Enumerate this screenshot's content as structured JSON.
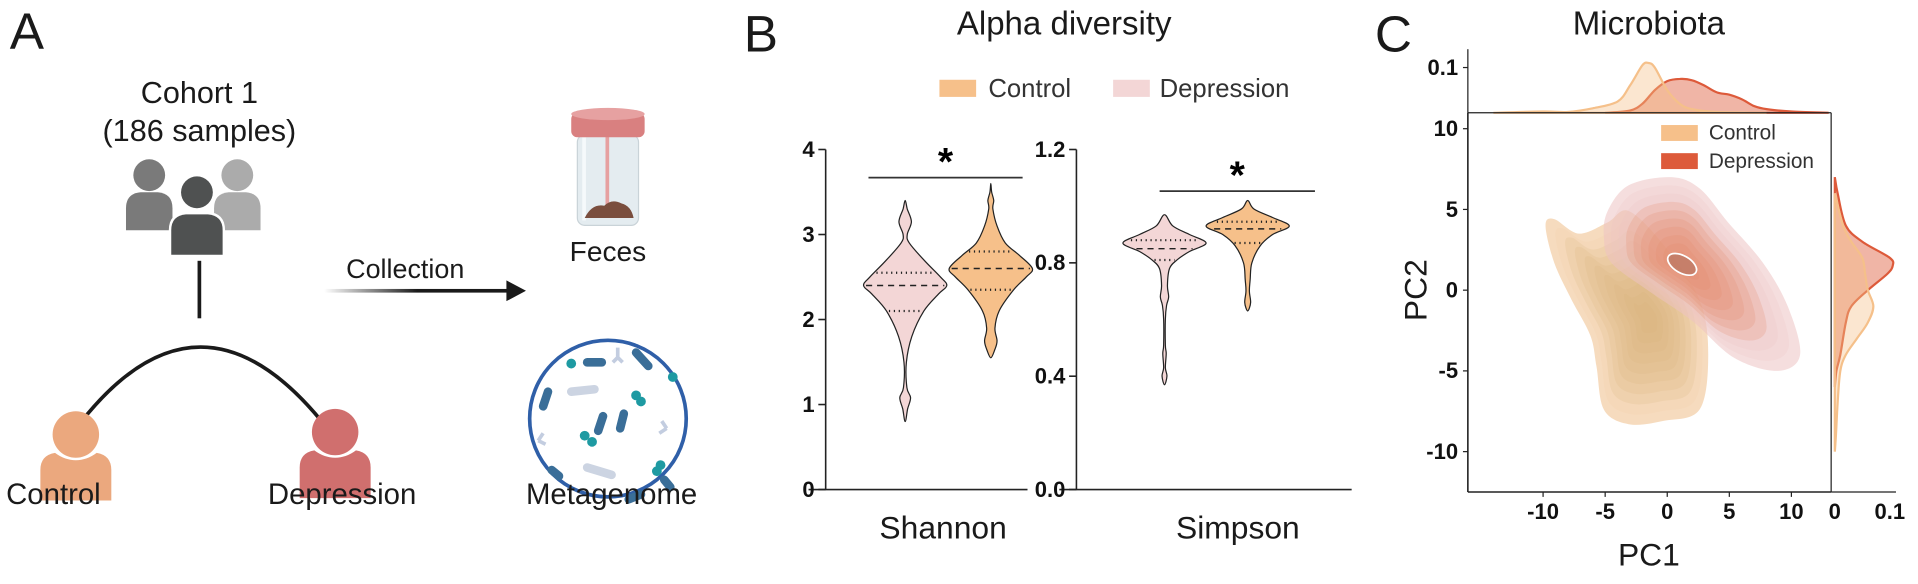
{
  "panel_a": {
    "letter": "A",
    "cohort_title": "Cohort 1",
    "cohort_samples": "(186 samples)",
    "group_control": "Control",
    "group_depression": "Depression",
    "arrow_label": "Collection",
    "sample_label": "Feces",
    "analysis_label": "Metagenome",
    "colors": {
      "control_person": "#eba87e",
      "depression_person": "#d06f6e",
      "circle": "#2f5fa8",
      "bacteria": "#3a6e98",
      "cocci": "#1e9aa2"
    }
  },
  "panel_b": {
    "letter": "B",
    "title": "Alpha diversity",
    "legend": [
      {
        "label": "Control",
        "color": "#f6c08a"
      },
      {
        "label": "Depression",
        "color": "#f3d6d6"
      }
    ]
  },
  "panel_c": {
    "letter": "C",
    "title": "Microbiota"
  },
  "chart_data": [
    {
      "type": "violin",
      "xlabel": "Shannon",
      "ylim": [
        0,
        4
      ],
      "yticks": [
        "0",
        "1",
        "2",
        "3",
        "4"
      ],
      "significance": "*",
      "series": [
        {
          "name": "Depression",
          "color": "#f3d6d6",
          "median": 2.4,
          "q1": 2.1,
          "q3": 2.55,
          "min": 0.8,
          "max": 3.4,
          "density": [
            [
              0.8,
              0
            ],
            [
              0.95,
              0.06
            ],
            [
              1.08,
              0.13
            ],
            [
              1.2,
              0.04
            ],
            [
              1.5,
              0.03
            ],
            [
              1.8,
              0.16
            ],
            [
              2.1,
              0.45
            ],
            [
              2.3,
              0.8
            ],
            [
              2.4,
              1.0
            ],
            [
              2.5,
              0.85
            ],
            [
              2.7,
              0.45
            ],
            [
              2.9,
              0.1
            ],
            [
              3.0,
              0.05
            ],
            [
              3.15,
              0.15
            ],
            [
              3.3,
              0.05
            ],
            [
              3.4,
              0
            ]
          ]
        },
        {
          "name": "Control",
          "color": "#f6c08a",
          "median": 2.6,
          "q1": 2.35,
          "q3": 2.8,
          "min": 1.55,
          "max": 3.6,
          "density": [
            [
              1.55,
              0
            ],
            [
              1.65,
              0.1
            ],
            [
              1.75,
              0.15
            ],
            [
              1.9,
              0.1
            ],
            [
              2.1,
              0.2
            ],
            [
              2.35,
              0.55
            ],
            [
              2.5,
              0.85
            ],
            [
              2.6,
              1.0
            ],
            [
              2.75,
              0.7
            ],
            [
              2.9,
              0.35
            ],
            [
              3.1,
              0.15
            ],
            [
              3.3,
              0.05
            ],
            [
              3.4,
              0.07
            ],
            [
              3.5,
              0.02
            ],
            [
              3.6,
              0
            ]
          ]
        }
      ]
    },
    {
      "type": "violin",
      "xlabel": "Simpson",
      "ylim": [
        0,
        1.2
      ],
      "yticks": [
        "0.0",
        "0.4",
        "0.8",
        "1.2"
      ],
      "significance": "*",
      "series": [
        {
          "name": "Depression",
          "color": "#f3d6d6",
          "median": 0.85,
          "q1": 0.81,
          "q3": 0.88,
          "min": 0.37,
          "max": 0.97,
          "density": [
            [
              0.37,
              0
            ],
            [
              0.4,
              0.06
            ],
            [
              0.43,
              0.02
            ],
            [
              0.48,
              0.04
            ],
            [
              0.51,
              0.02
            ],
            [
              0.6,
              0.02
            ],
            [
              0.65,
              0.05
            ],
            [
              0.68,
              0.1
            ],
            [
              0.72,
              0.07
            ],
            [
              0.78,
              0.12
            ],
            [
              0.81,
              0.3
            ],
            [
              0.84,
              0.6
            ],
            [
              0.87,
              1.0
            ],
            [
              0.9,
              0.6
            ],
            [
              0.93,
              0.2
            ],
            [
              0.97,
              0
            ]
          ]
        },
        {
          "name": "Control",
          "color": "#f6c08a",
          "median": 0.92,
          "q1": 0.87,
          "q3": 0.945,
          "min": 0.63,
          "max": 1.02,
          "density": [
            [
              0.63,
              0
            ],
            [
              0.66,
              0.07
            ],
            [
              0.7,
              0.04
            ],
            [
              0.74,
              0.06
            ],
            [
              0.8,
              0.1
            ],
            [
              0.86,
              0.3
            ],
            [
              0.9,
              0.6
            ],
            [
              0.93,
              1.0
            ],
            [
              0.96,
              0.6
            ],
            [
              0.99,
              0.15
            ],
            [
              1.02,
              0
            ]
          ]
        }
      ]
    },
    {
      "type": "density2d",
      "xlabel": "PC1",
      "ylabel": "PC2",
      "xlim": [
        -14,
        15.5
      ],
      "ylim": [
        -12.5,
        11
      ],
      "xticks": [
        "-10",
        "-5",
        "0",
        "5",
        "10"
      ],
      "yticks": [
        "10",
        "5",
        "0",
        "-5",
        "-10"
      ],
      "legend_position": "top-right",
      "series": [
        {
          "name": "Control",
          "color": "#f5c08a",
          "peak": [
            -1.5,
            -1.7
          ],
          "outer_contour": [
            [
              -9.8,
              4.0
            ],
            [
              -9.1,
              4.4
            ],
            [
              -7.1,
              3.5
            ],
            [
              -4.8,
              4.2
            ],
            [
              -3.1,
              4.9
            ],
            [
              -0.3,
              2.8
            ],
            [
              2.6,
              -0.6
            ],
            [
              3.3,
              -4.0
            ],
            [
              2.6,
              -7.4
            ],
            [
              -0.3,
              -8.1
            ],
            [
              -3.1,
              -8.3
            ],
            [
              -5.1,
              -7.4
            ],
            [
              -5.7,
              -4.7
            ],
            [
              -6.2,
              -2.8
            ],
            [
              -7.7,
              -0.6
            ],
            [
              -9.1,
              1.7
            ]
          ],
          "marginal_pc1": [
            [
              -14,
              0
            ],
            [
              -10,
              0.003
            ],
            [
              -8,
              0.002
            ],
            [
              -6,
              0.01
            ],
            [
              -4,
              0.025
            ],
            [
              -3,
              0.06
            ],
            [
              -2,
              0.105
            ],
            [
              -1.5,
              0.11
            ],
            [
              -1,
              0.1
            ],
            [
              0,
              0.05
            ],
            [
              1,
              0.02
            ],
            [
              2,
              0.008
            ],
            [
              4,
              0.002
            ],
            [
              8,
              0
            ]
          ],
          "marginal_pc2": [
            [
              6,
              0
            ],
            [
              4,
              0.015
            ],
            [
              3,
              0.03
            ],
            [
              2,
              0.05
            ],
            [
              1,
              0.055
            ],
            [
              0,
              0.06
            ],
            [
              -1,
              0.07
            ],
            [
              -2,
              0.06
            ],
            [
              -3,
              0.04
            ],
            [
              -4,
              0.02
            ],
            [
              -5,
              0.01
            ],
            [
              -7,
              0.005
            ],
            [
              -9,
              0.002
            ],
            [
              -10,
              0
            ]
          ]
        },
        {
          "name": "Depression",
          "color": "#dd5a3a",
          "peak": [
            1.2,
            1.6
          ],
          "outer_contour": [
            [
              -4.8,
              4.9
            ],
            [
              -3.1,
              6.5
            ],
            [
              0.3,
              7.0
            ],
            [
              2.6,
              6.3
            ],
            [
              4.9,
              4.2
            ],
            [
              7.7,
              1.7
            ],
            [
              9.7,
              -1.0
            ],
            [
              10.7,
              -4.0
            ],
            [
              8.9,
              -5.0
            ],
            [
              5.4,
              -4.2
            ],
            [
              2.0,
              -1.9
            ],
            [
              -1.4,
              -0.1
            ],
            [
              -4.5,
              1.7
            ],
            [
              -5.1,
              3.3
            ]
          ],
          "marginal_pc1": [
            [
              -5,
              0
            ],
            [
              -3,
              0.005
            ],
            [
              -2,
              0.02
            ],
            [
              -1,
              0.05
            ],
            [
              0,
              0.07
            ],
            [
              1,
              0.075
            ],
            [
              2,
              0.072
            ],
            [
              3,
              0.06
            ],
            [
              4,
              0.045
            ],
            [
              5,
              0.04
            ],
            [
              6,
              0.03
            ],
            [
              7,
              0.015
            ],
            [
              8,
              0.008
            ],
            [
              10,
              0.003
            ],
            [
              13,
              0
            ]
          ],
          "marginal_pc2": [
            [
              7,
              0
            ],
            [
              6,
              0.005
            ],
            [
              4,
              0.02
            ],
            [
              3,
              0.05
            ],
            [
              2,
              0.1
            ],
            [
              1.5,
              0.105
            ],
            [
              1,
              0.095
            ],
            [
              0,
              0.06
            ],
            [
              -1,
              0.03
            ],
            [
              -2,
              0.02
            ],
            [
              -4,
              0.01
            ],
            [
              -5,
              0.003
            ],
            [
              -6,
              0
            ]
          ]
        }
      ],
      "marginal_top": {
        "ticks": [
          "0.1"
        ],
        "ylim": [
          0,
          0.1
        ]
      },
      "marginal_right": {
        "ticks": [
          "0",
          "0.1"
        ],
        "xlim": [
          0,
          0.1
        ]
      }
    }
  ]
}
